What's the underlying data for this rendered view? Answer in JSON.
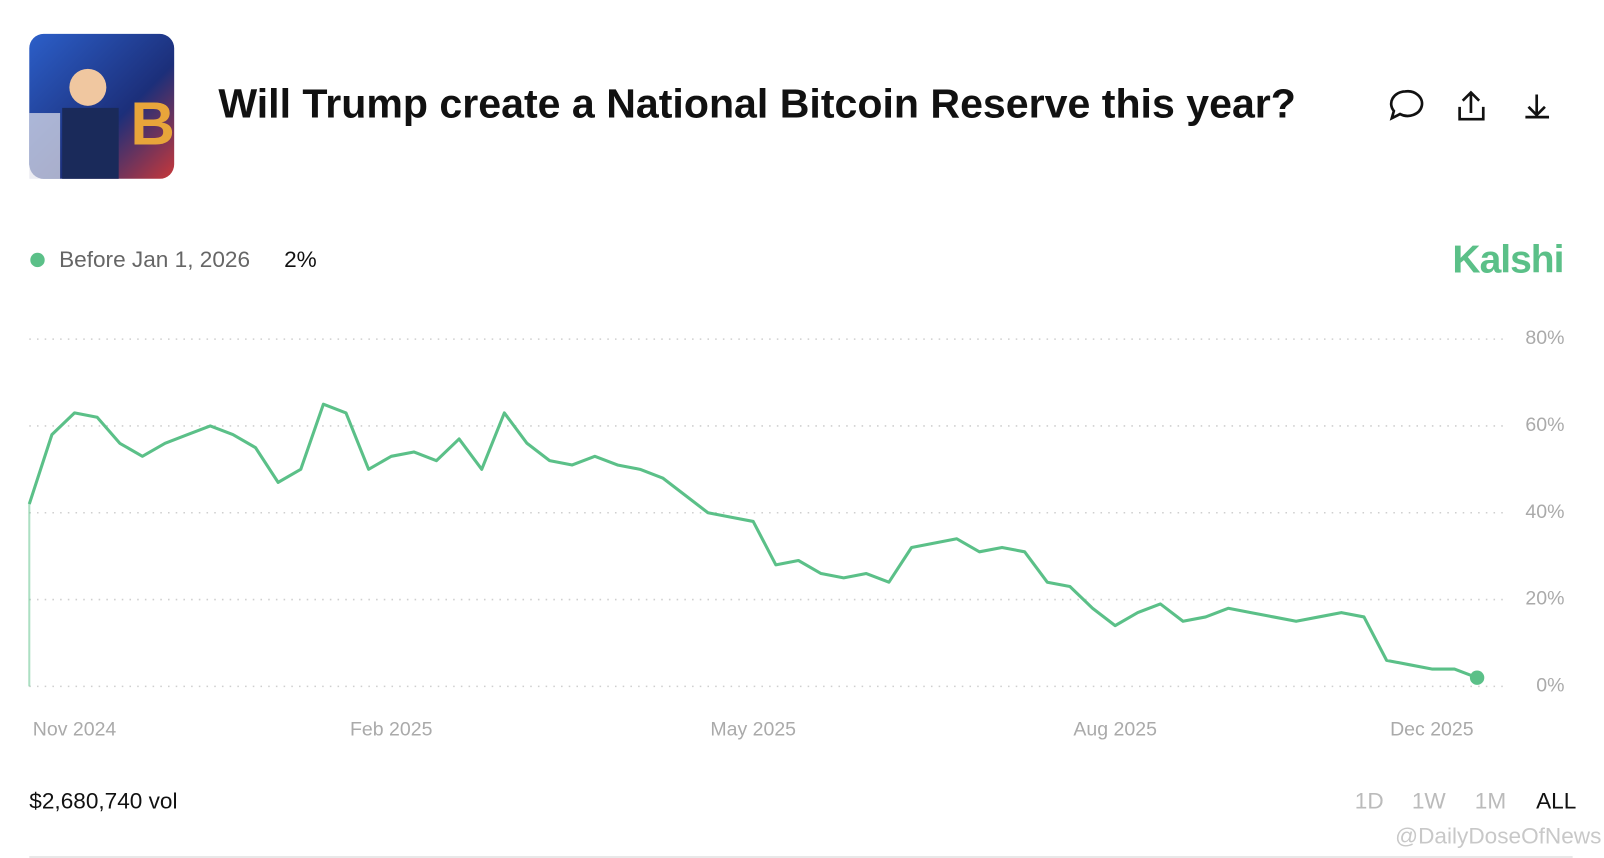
{
  "header": {
    "title": "Will Trump create a National Bitcoin Reserve this year?"
  },
  "brand": "Kalshi",
  "legend_value": "2%",
  "volume": "$2,680,740 vol",
  "ranges": [
    "1D",
    "1W",
    "1M",
    "ALL"
  ],
  "watermark": "@DailyDoseOfNews",
  "chart_data": {
    "type": "line",
    "series": [
      {
        "name": "Before Jan 1, 2026",
        "color": "#5bc088",
        "values": [
          42,
          58,
          63,
          62,
          56,
          53,
          56,
          58,
          60,
          58,
          55,
          47,
          50,
          65,
          63,
          50,
          53,
          54,
          52,
          57,
          50,
          63,
          56,
          52,
          51,
          53,
          51,
          50,
          48,
          44,
          40,
          39,
          38,
          28,
          29,
          26,
          25,
          26,
          24,
          32,
          33,
          34,
          31,
          32,
          31,
          24,
          23,
          18,
          14,
          17,
          19,
          15,
          16,
          18,
          17,
          16,
          15,
          16,
          17,
          16,
          6,
          5,
          4,
          4,
          2
        ]
      }
    ],
    "xlim": [
      0,
      64
    ],
    "xticks": [
      {
        "value": 2,
        "label": "Nov 2024"
      },
      {
        "value": 16,
        "label": "Feb 2025"
      },
      {
        "value": 32,
        "label": "May 2025"
      },
      {
        "value": 48,
        "label": "Aug 2025"
      },
      {
        "value": 62,
        "label": "Dec 2025"
      }
    ],
    "ylim": [
      0,
      80
    ],
    "yticks": [
      {
        "value": 0,
        "label": "0%"
      },
      {
        "value": 20,
        "label": "20%"
      },
      {
        "value": 40,
        "label": "40%"
      },
      {
        "value": 60,
        "label": "60%"
      },
      {
        "value": 80,
        "label": "80%"
      }
    ],
    "grid": true
  }
}
